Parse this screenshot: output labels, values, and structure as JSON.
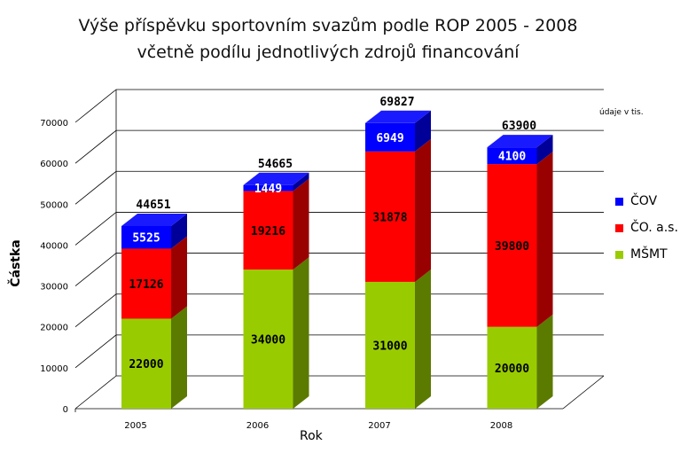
{
  "chart": {
    "title_line1": "Výše příspěvku sportovním svazům podle ROP 2005 - 2008",
    "title_line2": "včetně podílu jednotlivých zdrojů financování",
    "note": "údaje v tis.",
    "ylabel": "Částka",
    "xlabel": "Rok"
  },
  "legend": [
    {
      "name": "ČOV",
      "color": "#0000ff"
    },
    {
      "name": "ČO. a.s.",
      "color": "#ff0000"
    },
    {
      "name": "MŠMT",
      "color": "#99cc00"
    }
  ],
  "chart_data": {
    "type": "bar",
    "stacked": true,
    "three_d": true,
    "title": "Výše příspěvku sportovním svazům podle ROP 2005 - 2008 včetně podílu jednotlivých zdrojů financování",
    "xlabel": "Rok",
    "ylabel": "Částka",
    "ylim": [
      0,
      70000
    ],
    "yticks": [
      0,
      10000,
      20000,
      30000,
      40000,
      50000,
      60000,
      70000
    ],
    "grid": true,
    "legend_position": "right",
    "categories": [
      "2005",
      "2006",
      "2007",
      "2008"
    ],
    "series": [
      {
        "name": "MŠMT",
        "color": "#99cc00",
        "values": [
          22000,
          34000,
          31000,
          20000
        ]
      },
      {
        "name": "ČO. a.s.",
        "color": "#ff0000",
        "values": [
          17126,
          19216,
          31878,
          39800
        ]
      },
      {
        "name": "ČOV",
        "color": "#0000ff",
        "values": [
          5525,
          1449,
          6949,
          4100
        ]
      }
    ],
    "totals": [
      44651,
      54665,
      69827,
      63900
    ]
  }
}
